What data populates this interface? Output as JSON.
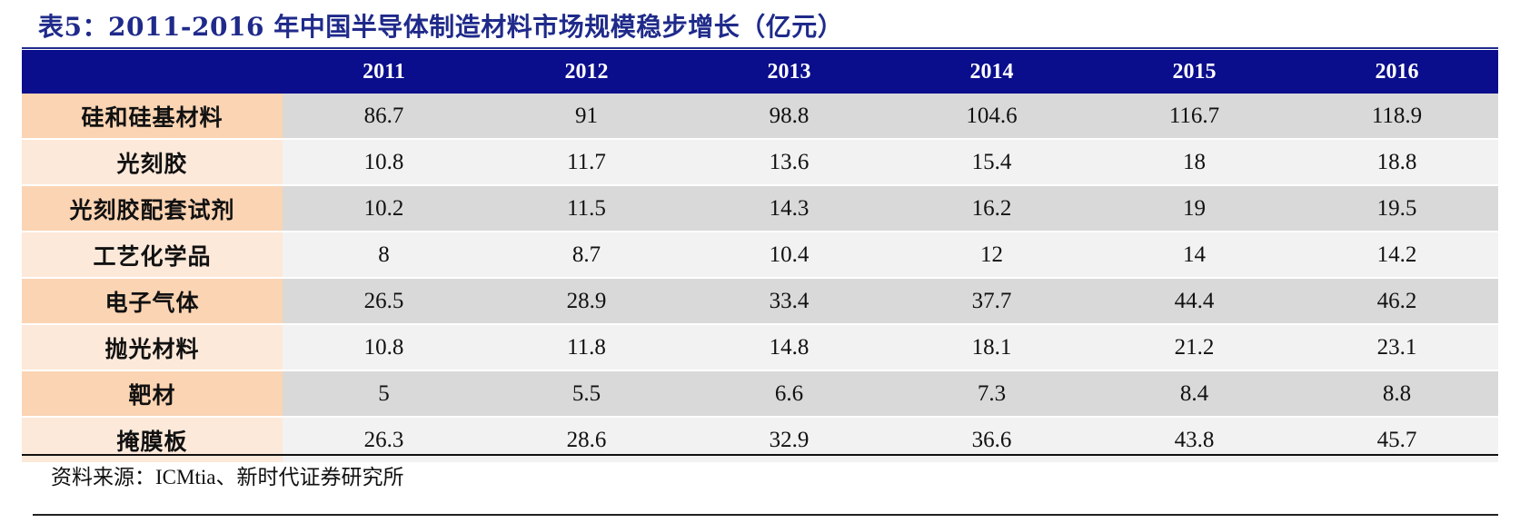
{
  "title": "表5：2011-2016 年中国半导体制造材料市场规模稳步增长（亿元）",
  "table": {
    "header_label": "",
    "years": [
      "2011",
      "2012",
      "2013",
      "2014",
      "2015",
      "2016"
    ],
    "rows": [
      {
        "label": "硅和硅基材料",
        "values": [
          "86.7",
          "91",
          "98.8",
          "104.6",
          "116.7",
          "118.9"
        ]
      },
      {
        "label": "光刻胶",
        "values": [
          "10.8",
          "11.7",
          "13.6",
          "15.4",
          "18",
          "18.8"
        ]
      },
      {
        "label": "光刻胶配套试剂",
        "values": [
          "10.2",
          "11.5",
          "14.3",
          "16.2",
          "19",
          "19.5"
        ]
      },
      {
        "label": "工艺化学品",
        "values": [
          "8",
          "8.7",
          "10.4",
          "12",
          "14",
          "14.2"
        ]
      },
      {
        "label": "电子气体",
        "values": [
          "26.5",
          "28.9",
          "33.4",
          "37.7",
          "44.4",
          "46.2"
        ]
      },
      {
        "label": "抛光材料",
        "values": [
          "10.8",
          "11.8",
          "14.8",
          "18.1",
          "21.2",
          "23.1"
        ]
      },
      {
        "label": "靶材",
        "values": [
          "5",
          "5.5",
          "6.6",
          "7.3",
          "8.4",
          "8.8"
        ]
      },
      {
        "label": "掩膜板",
        "values": [
          "26.3",
          "28.6",
          "32.9",
          "36.6",
          "43.8",
          "45.7"
        ]
      }
    ]
  },
  "source": "资料来源：ICMtia、新时代证券研究所",
  "colors": {
    "header_bg": "#0a0d8c",
    "title_text": "#1f2a8a",
    "label_odd": "#fbd4b3",
    "label_even": "#fde9da",
    "cell_odd": "#d9d9d9",
    "cell_even": "#f2f2f2"
  }
}
